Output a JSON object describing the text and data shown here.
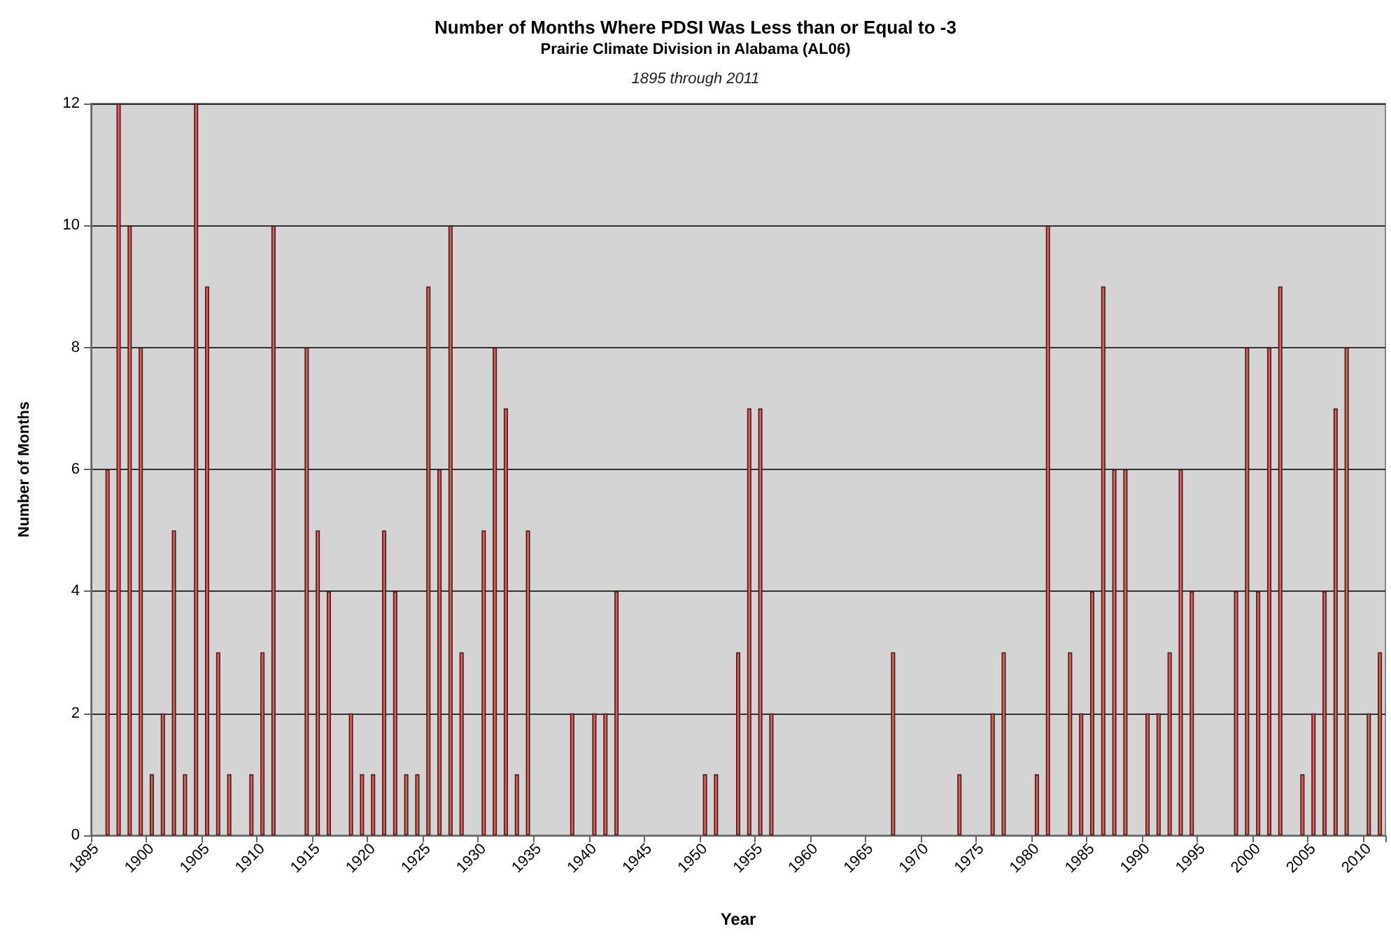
{
  "chart_data": {
    "type": "bar",
    "title": "Number of Months Where PDSI Was Less than or Equal to -3",
    "subtitle": "Prairie Climate Division in Alabama (AL06)",
    "annotations": [
      "1895 through 2011"
    ],
    "xlabel": "Year",
    "ylabel": "Number of Months",
    "categories": [
      "1895",
      null,
      null,
      null,
      null,
      "1900",
      null,
      null,
      null,
      null,
      "1905",
      null,
      null,
      null,
      null,
      "1910",
      null,
      null,
      null,
      null,
      "1915",
      null,
      null,
      null,
      null,
      "1920",
      null,
      null,
      null,
      null,
      "1925",
      null,
      null,
      null,
      null,
      "1930",
      null,
      null,
      null,
      null,
      "1935",
      null,
      null,
      null,
      null,
      "1940",
      null,
      null,
      null,
      null,
      "1945",
      null,
      null,
      null,
      null,
      "1950",
      null,
      null,
      null,
      null,
      "1955",
      null,
      null,
      null,
      null,
      "1960",
      null,
      null,
      null,
      null,
      "1965",
      null,
      null,
      null,
      null,
      "1970",
      null,
      null,
      null,
      null,
      "1975",
      null,
      null,
      null,
      null,
      "1980",
      null,
      null,
      null,
      null,
      "1985",
      null,
      null,
      null,
      null,
      "1990",
      null,
      null,
      null,
      null,
      "1995",
      null,
      null,
      null,
      null,
      "2000",
      null,
      null,
      null,
      null,
      "2005",
      null,
      null,
      null,
      null,
      "2010",
      null
    ],
    "values": [
      0,
      6,
      12,
      10,
      8,
      1,
      2,
      5,
      1,
      12,
      9,
      3,
      1,
      0,
      1,
      3,
      10,
      0,
      0,
      8,
      5,
      4,
      0,
      2,
      1,
      1,
      5,
      4,
      1,
      1,
      9,
      6,
      10,
      3,
      0,
      5,
      8,
      7,
      1,
      5,
      0,
      0,
      0,
      2,
      0,
      2,
      2,
      4,
      0,
      0,
      0,
      0,
      0,
      0,
      0,
      1,
      1,
      0,
      3,
      7,
      7,
      2,
      0,
      0,
      0,
      0,
      0,
      0,
      0,
      0,
      0,
      0,
      3,
      0,
      0,
      0,
      0,
      0,
      1,
      0,
      0,
      2,
      3,
      0,
      0,
      1,
      10,
      0,
      3,
      2,
      4,
      9,
      6,
      6,
      0,
      2,
      2,
      3,
      6,
      4,
      0,
      0,
      0,
      4,
      8,
      4,
      8,
      9,
      0,
      1,
      2,
      4,
      7,
      8,
      0,
      2,
      3
    ],
    "color": "#d9615d",
    "ylim": [
      0,
      12
    ],
    "yticks": [
      0,
      2,
      4,
      6,
      8,
      10,
      12
    ],
    "grid": "y"
  }
}
